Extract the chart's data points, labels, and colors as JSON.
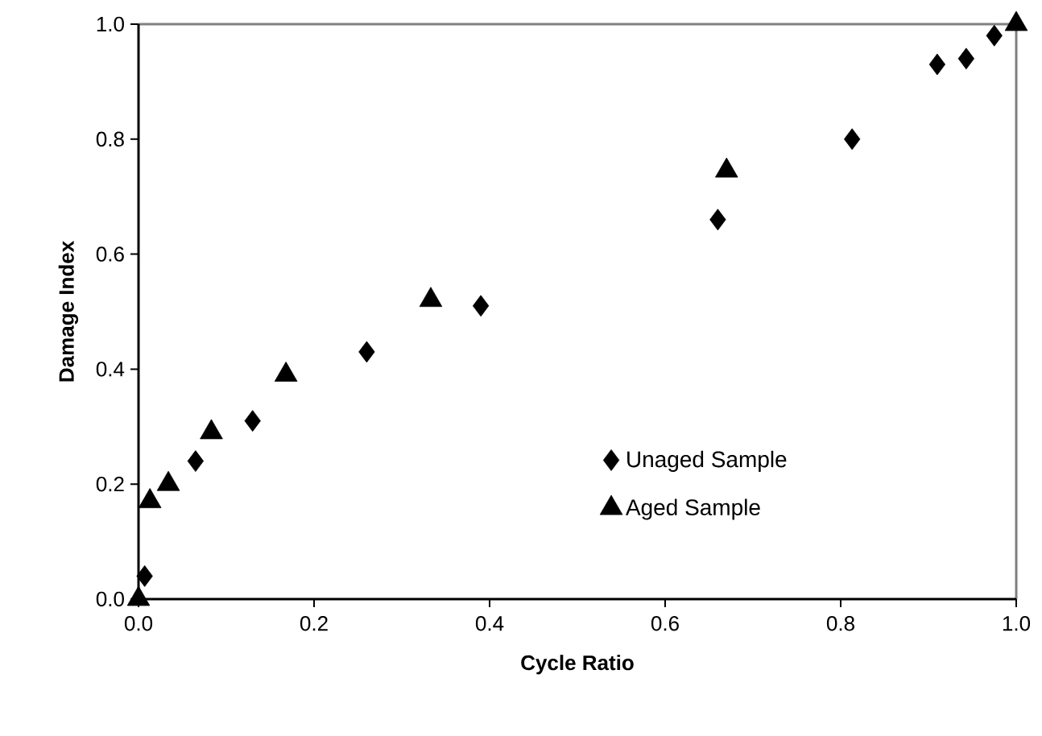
{
  "chart_data": {
    "type": "scatter",
    "xlabel": "Cycle Ratio",
    "ylabel": "Damage Index",
    "xlim": [
      0,
      1
    ],
    "ylim": [
      0,
      1
    ],
    "xticks": [
      {
        "value": 0,
        "label": "0.0"
      },
      0.2,
      0.4,
      0.6,
      0.8,
      {
        "value": 1,
        "label": "1.0"
      }
    ],
    "yticks": [
      {
        "value": 0,
        "label": "0.0"
      },
      0.2,
      0.4,
      0.6,
      0.8,
      {
        "value": 1,
        "label": "1.0"
      }
    ],
    "legend": "bottom right",
    "grid": false,
    "series": [
      {
        "name": "Unaged Sample",
        "color": "#000000",
        "marker": "diamond",
        "x": [
          0.007,
          0.065,
          0.13,
          0.26,
          0.39,
          0.66,
          0.813,
          0.91,
          0.943,
          0.975
        ],
        "values": [
          0.04,
          0.24,
          0.31,
          0.43,
          0.51,
          0.66,
          0.8,
          0.93,
          0.94,
          0.98
        ]
      },
      {
        "name": "Aged Sample",
        "color": "#000000",
        "marker": "triangle",
        "x": [
          0.0,
          0.013,
          0.034,
          0.083,
          0.168,
          0.333,
          0.67,
          1.0
        ],
        "values": [
          0.0,
          0.17,
          0.2,
          0.29,
          0.39,
          0.52,
          0.745,
          1.0
        ]
      }
    ]
  }
}
